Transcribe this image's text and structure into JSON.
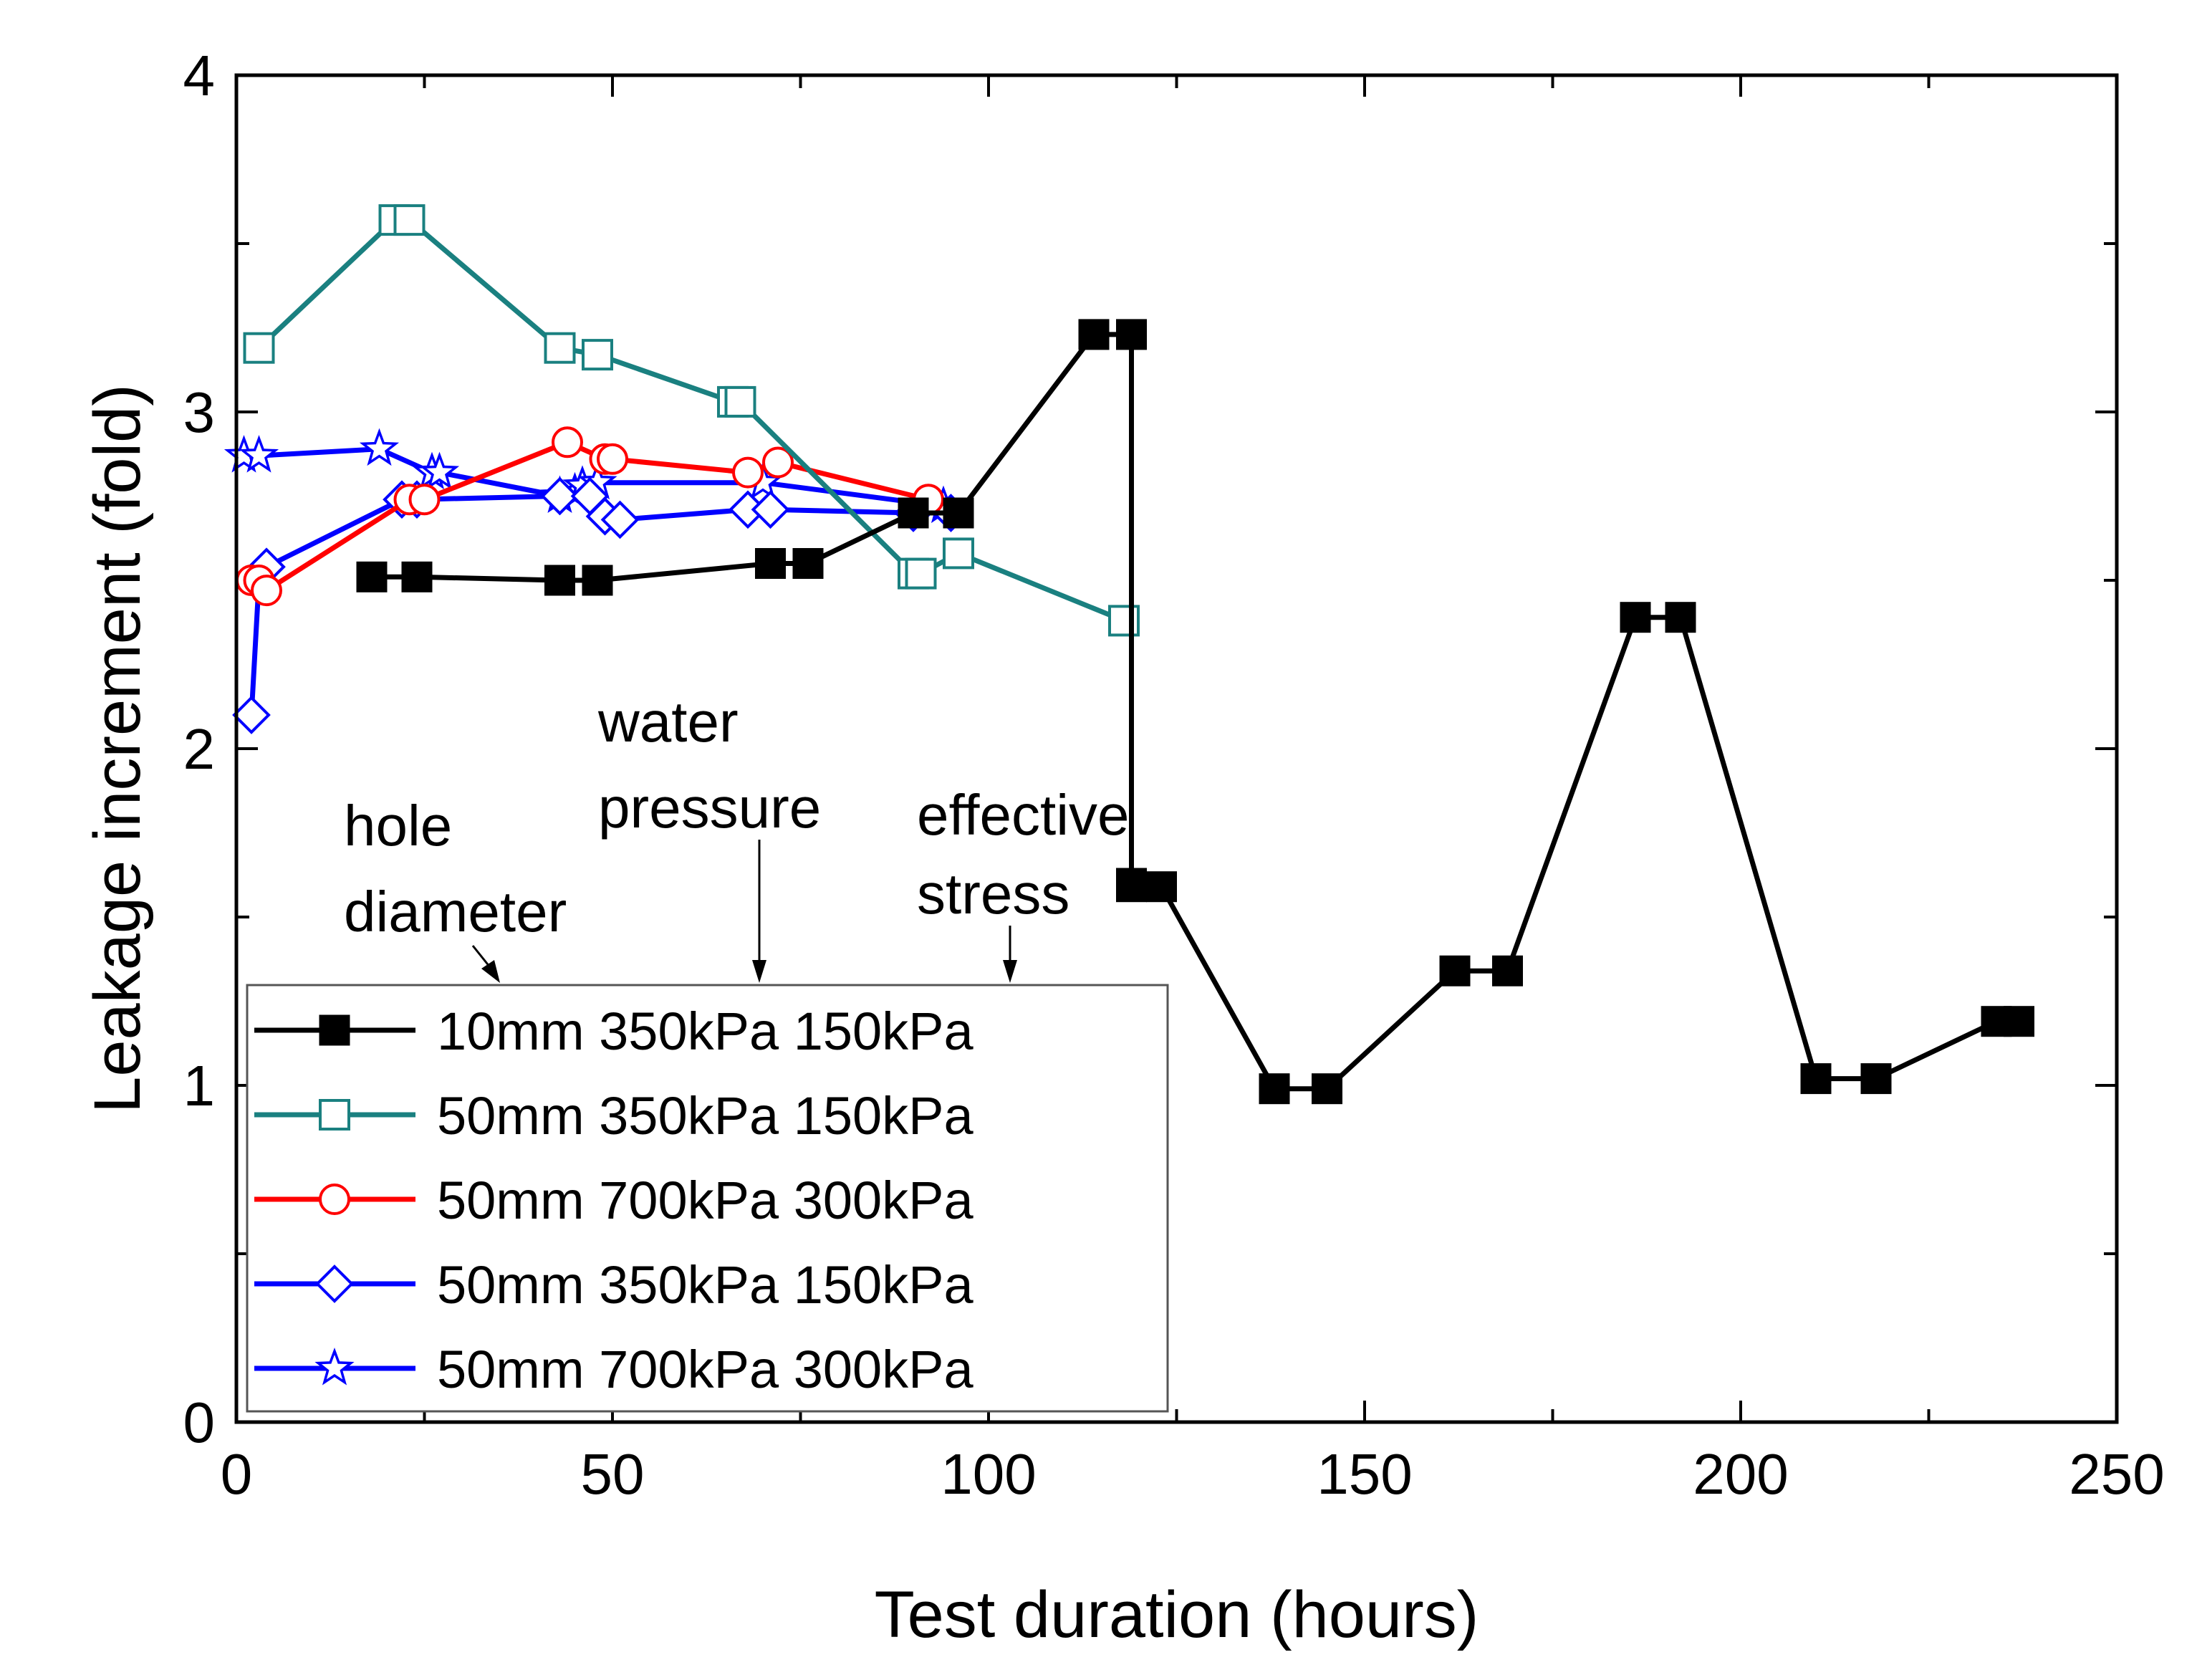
{
  "chart_data": {
    "type": "line",
    "title": "",
    "xlabel": "Test duration (hours)",
    "ylabel": "Leakage increment (fold)",
    "xlim": [
      0,
      250
    ],
    "ylim": [
      0,
      4
    ],
    "xticks": [
      0,
      50,
      100,
      150,
      200,
      250
    ],
    "yticks": [
      0,
      1,
      2,
      3,
      4
    ],
    "xtick_labels": [
      "0",
      "50",
      "100",
      "150",
      "200",
      "250"
    ],
    "ytick_labels": [
      "0",
      "1",
      "2",
      "3",
      "4"
    ],
    "grid": false,
    "legend_position": "bottom-left",
    "series": [
      {
        "name": "10mm 350kPa 150kPa",
        "color": "#000000",
        "marker": "filled-square",
        "x": [
          18,
          24,
          43,
          48,
          71,
          76,
          90,
          96,
          114,
          119,
          119,
          119,
          123,
          138,
          145,
          162,
          169,
          186,
          192,
          210,
          218,
          234,
          237
        ],
        "y": [
          2.51,
          2.51,
          2.5,
          2.5,
          2.55,
          2.55,
          2.7,
          2.7,
          3.23,
          3.23,
          1.6,
          1.59,
          1.59,
          0.99,
          0.99,
          1.34,
          1.34,
          2.39,
          2.39,
          1.02,
          1.02,
          1.19,
          1.19
        ]
      },
      {
        "name": "50mm 350kPa 150kPa",
        "color": "#1a8080",
        "marker": "open-square",
        "x": [
          3,
          21,
          23,
          43,
          48,
          66,
          67,
          90,
          91,
          96,
          118
        ],
        "y": [
          3.19,
          3.57,
          3.57,
          3.19,
          3.17,
          3.03,
          3.03,
          2.52,
          2.52,
          2.58,
          2.38
        ]
      },
      {
        "name": "50mm 700kPa 300kPa",
        "color": "#ff0000",
        "marker": "open-circle",
        "x": [
          2,
          3,
          4,
          23,
          25,
          44,
          49,
          50,
          68,
          72,
          92
        ],
        "y": [
          2.5,
          2.5,
          2.47,
          2.74,
          2.74,
          2.91,
          2.86,
          2.86,
          2.82,
          2.85,
          2.74
        ]
      },
      {
        "name": "50mm 350kPa 150kPa",
        "color": "#0000ff",
        "marker": "open-diamond",
        "x": [
          2,
          3,
          4,
          22,
          24,
          43,
          47,
          49,
          51,
          68,
          71,
          90,
          95
        ],
        "y": [
          2.1,
          2.5,
          2.54,
          2.74,
          2.74,
          2.75,
          2.75,
          2.69,
          2.68,
          2.71,
          2.71,
          2.7,
          2.7
        ]
      },
      {
        "name": "50mm 700kPa 300kPa",
        "color": "#0000ff",
        "marker": "open-star",
        "x": [
          1,
          3,
          19,
          26,
          27,
          43,
          45,
          46,
          48,
          70,
          94
        ],
        "y": [
          2.87,
          2.87,
          2.89,
          2.82,
          2.82,
          2.75,
          2.76,
          2.78,
          2.79,
          2.79,
          2.72
        ]
      }
    ],
    "annotations": [
      {
        "id": "hole",
        "lines": [
          "hole",
          "diameter"
        ]
      },
      {
        "id": "water",
        "lines": [
          "water",
          "pressure"
        ]
      },
      {
        "id": "stress",
        "lines": [
          "effective",
          "stress"
        ]
      }
    ]
  }
}
